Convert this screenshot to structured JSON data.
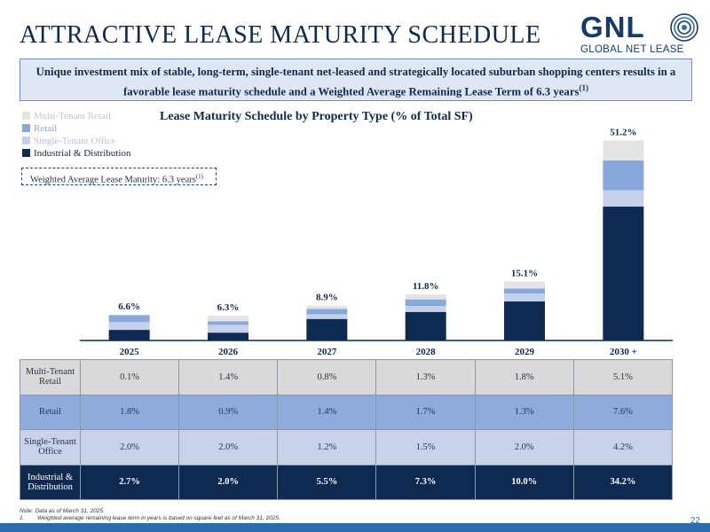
{
  "page": {
    "title": "ATTRACTIVE LEASE MATURITY SCHEDULE",
    "banner": "Unique investment mix of stable, long-term, single-tenant net-leased and strategically located suburban shopping centers results in a favorable lease maturity schedule and a Weighted Average Remaining Lease Term of 6.3 years",
    "banner_footnote_ref": "(1)",
    "page_number": "22"
  },
  "logo": {
    "main": "GNL",
    "sub": "GLOBAL NET LEASE"
  },
  "wal_box": {
    "text": "Weighted Average Lease Maturity: 6.3 years",
    "sup": "(1)"
  },
  "colors": {
    "multi_tenant_retail": "#e4e4e4",
    "retail": "#88a8db",
    "single_tenant_office": "#c5d1ea",
    "industrial": "#0e2a50",
    "navy": "#0e2a50"
  },
  "chart_data": {
    "type": "bar",
    "stacked": true,
    "title": "Lease Maturity Schedule by Property Type (% of Total SF)",
    "categories": [
      "2025",
      "2026",
      "2027",
      "2028",
      "2029",
      "2030 +"
    ],
    "totals": [
      "6.6%",
      "6.3%",
      "8.9%",
      "11.8%",
      "15.1%",
      "51.2%"
    ],
    "legend_order": [
      "Multi-Tenant Retail",
      "Retail",
      "Single-Tenant Office",
      "Industrial & Distribution"
    ],
    "series": [
      {
        "name": "Industrial & Distribution",
        "key": "industrial",
        "values": [
          2.7,
          2.0,
          5.5,
          7.3,
          10.0,
          34.2
        ]
      },
      {
        "name": "Single-Tenant Office",
        "key": "single_tenant_office",
        "values": [
          2.0,
          2.0,
          1.2,
          1.5,
          2.0,
          4.2
        ]
      },
      {
        "name": "Retail",
        "key": "retail",
        "values": [
          1.8,
          0.9,
          1.4,
          1.7,
          1.3,
          7.6
        ]
      },
      {
        "name": "Multi-Tenant Retail",
        "key": "multi_tenant_retail",
        "values": [
          0.1,
          1.4,
          0.8,
          1.3,
          1.8,
          5.1
        ]
      }
    ],
    "ylim": [
      0,
      51.2
    ]
  },
  "table": {
    "rows": [
      {
        "label": "Multi-Tenant Retail",
        "values": [
          "0.1%",
          "1.4%",
          "0.8%",
          "1.3%",
          "1.8%",
          "5.1%"
        ]
      },
      {
        "label": "Retail",
        "values": [
          "1.8%",
          "0.9%",
          "1.4%",
          "1.7%",
          "1.3%",
          "7.6%"
        ]
      },
      {
        "label": "Single-Tenant Office",
        "values": [
          "2.0%",
          "2.0%",
          "1.2%",
          "1.5%",
          "2.0%",
          "4.2%"
        ]
      },
      {
        "label": "Industrial & Distribution",
        "values": [
          "2.7%",
          "2.0%",
          "5.5%",
          "7.3%",
          "10.0%",
          "34.2%"
        ]
      }
    ]
  },
  "footnotes": {
    "note": "Note: Data as of March 31, 2025.",
    "item1_number": "1.",
    "item1_text": "Weighted average remaining lease term in years is based on square feet as of March 31, 2025."
  }
}
